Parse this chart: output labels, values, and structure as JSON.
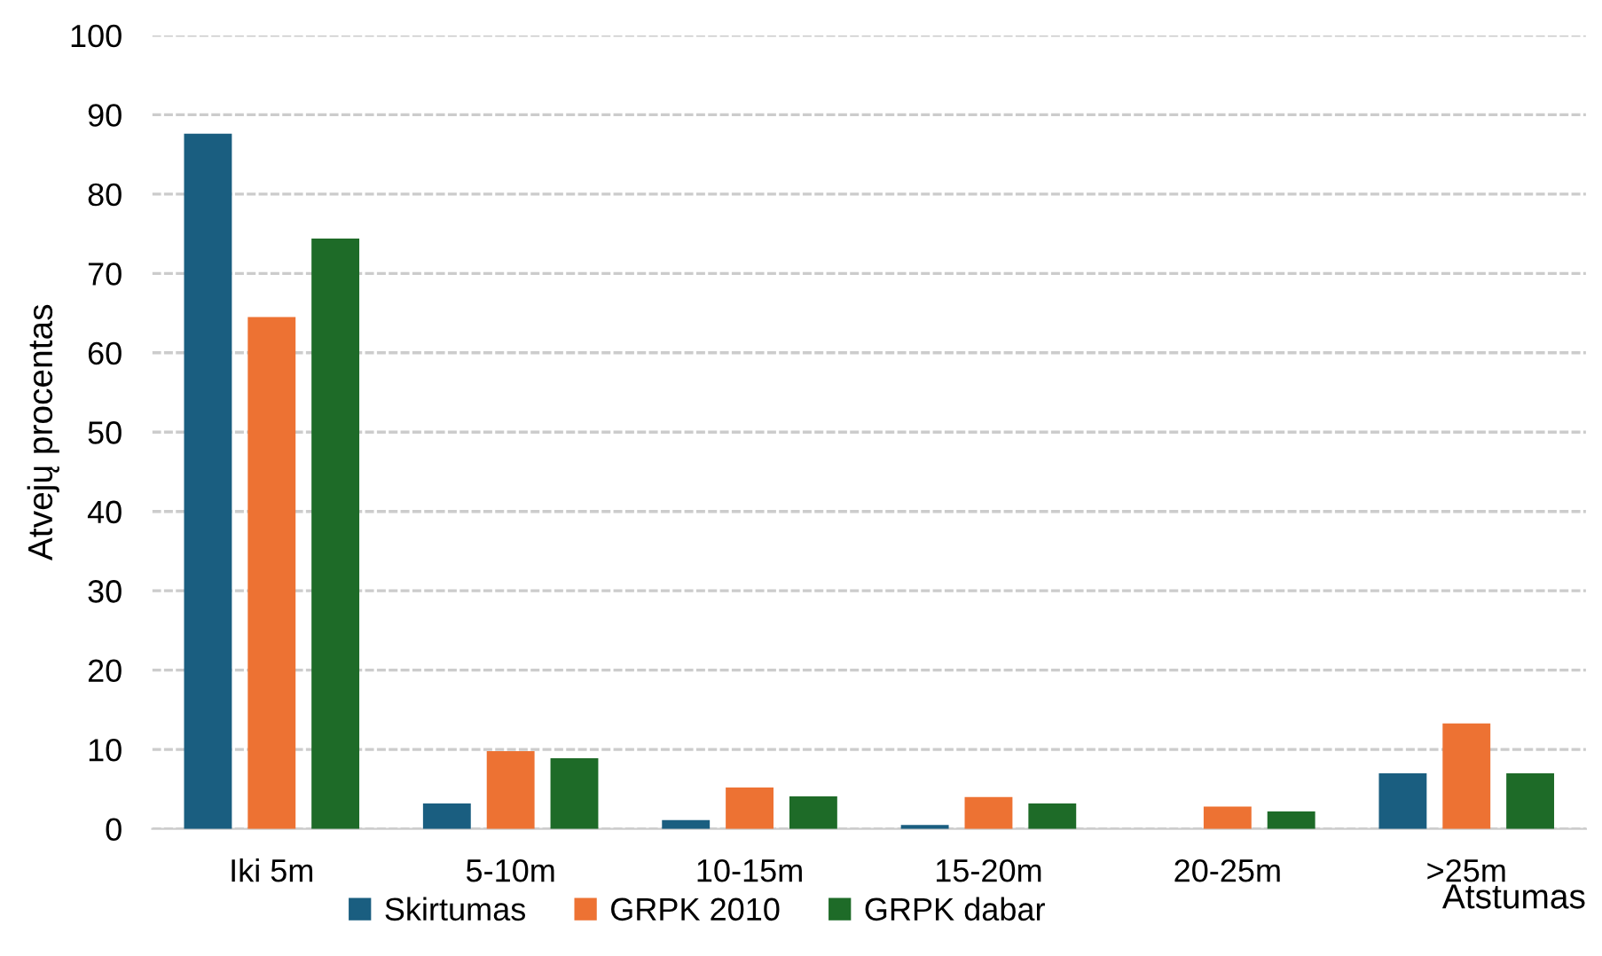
{
  "chart_data": {
    "type": "bar",
    "ylabel": "Atvejų procentas",
    "xlabel": "Atstumas",
    "categories": [
      "Iki 5m",
      "5-10m",
      "10-15m",
      "15-20m",
      "20-25m",
      ">25m"
    ],
    "series": [
      {
        "name": "Skirtumas",
        "color": "#1a5e80",
        "values": [
          87.6,
          3.2,
          1.1,
          0.5,
          0,
          7.0
        ]
      },
      {
        "name": "GRPK 2010",
        "color": "#ed7233",
        "values": [
          64.5,
          9.8,
          5.2,
          4.0,
          2.8,
          13.3
        ]
      },
      {
        "name": "GRPK dabar",
        "color": "#1e6b28",
        "values": [
          74.4,
          8.9,
          4.1,
          3.2,
          2.2,
          7.0
        ]
      }
    ],
    "ylim": [
      0,
      100
    ],
    "yticks": [
      0,
      10,
      20,
      30,
      40,
      50,
      60,
      70,
      80,
      90,
      100
    ],
    "grid": "y",
    "legend": "bottom"
  }
}
